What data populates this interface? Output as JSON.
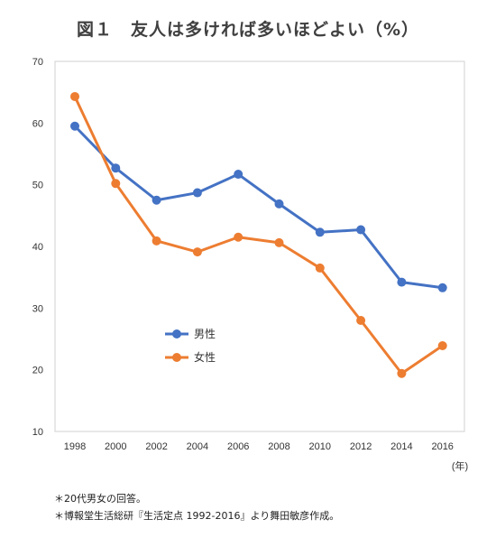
{
  "chart_data": {
    "type": "line",
    "title": "図１　友人は多ければ多いほどよい（%）",
    "xlabel": "(年)",
    "ylabel": "",
    "categories": [
      "1998",
      "2000",
      "2002",
      "2004",
      "2006",
      "2008",
      "2010",
      "2012",
      "2014",
      "2016"
    ],
    "ylim": [
      10,
      70
    ],
    "yticks": [
      10,
      20,
      30,
      40,
      50,
      60,
      70
    ],
    "grid": false,
    "legend_position": "lower-left",
    "series": [
      {
        "name": "男性",
        "color": "#4472C4",
        "values": [
          59.5,
          52.7,
          47.5,
          48.7,
          51.7,
          46.9,
          42.3,
          42.7,
          34.2,
          33.3
        ]
      },
      {
        "name": "女性",
        "color": "#ED7D31",
        "values": [
          64.3,
          50.2,
          40.9,
          39.1,
          41.5,
          40.6,
          36.5,
          28.0,
          19.4,
          23.9
        ]
      }
    ]
  },
  "notes": [
    "＊20代男女の回答。",
    "＊博報堂生活総研『生活定点 1992-2016』より舞田敏彦作成。"
  ]
}
